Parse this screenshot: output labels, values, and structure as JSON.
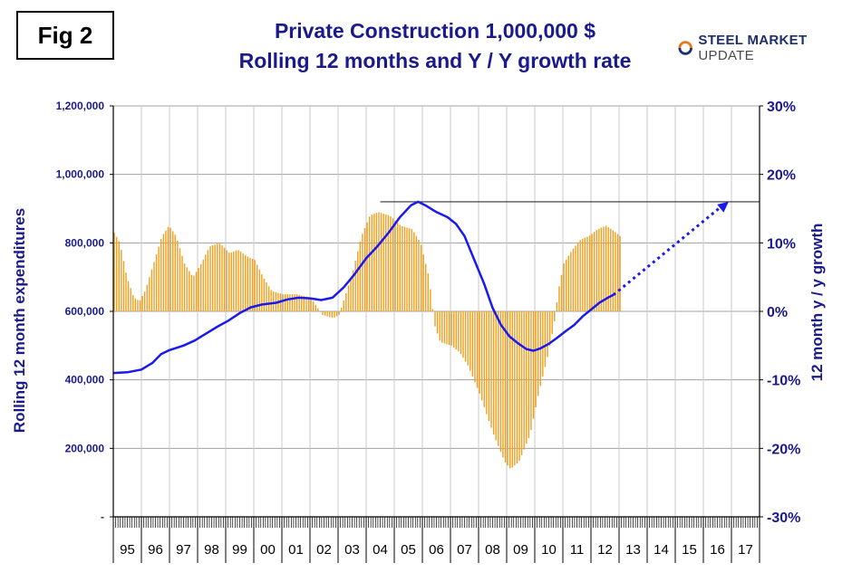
{
  "figure_label": "Fig 2",
  "brand": {
    "bold": "STEEL MARKET",
    "light": " UPDATE",
    "accent": "#e87722"
  },
  "colors": {
    "bars": "#f0a020",
    "line": "#1a1aee",
    "text": "#1a1a8c",
    "dotted_arrow": "#1a1aee"
  },
  "chart_data": {
    "type": "bar",
    "title": [
      "Private Construction 1,000,000 $",
      "Rolling 12 months and Y / Y growth rate"
    ],
    "ylabel_left": "Rolling 12 month expenditures",
    "ylabel_right": "12 month y / y growth",
    "left_axis": {
      "min": 0,
      "max": 1200000,
      "ticks": [
        "-",
        "200,000",
        "400,000",
        "600,000",
        "800,000",
        "1,000,000",
        "1,200,000"
      ]
    },
    "right_axis": {
      "min": -0.3,
      "max": 0.3,
      "ticks": [
        "-30%",
        "-20%",
        "-10%",
        "0%",
        "10%",
        "20%",
        "30%"
      ]
    },
    "years": [
      "95",
      "96",
      "97",
      "98",
      "99",
      "00",
      "01",
      "02",
      "03",
      "04",
      "05",
      "06",
      "07",
      "08",
      "09",
      "10",
      "11",
      "12",
      "13",
      "14",
      "15",
      "16",
      "17"
    ],
    "series": [
      {
        "name": "Y/Y growth (bars, right axis)",
        "type": "bar",
        "anchors": [
          [
            1995.0,
            0.115
          ],
          [
            1995.2,
            0.1
          ],
          [
            1995.45,
            0.05
          ],
          [
            1995.7,
            0.02
          ],
          [
            1995.9,
            0.015
          ],
          [
            1996.1,
            0.03
          ],
          [
            1996.4,
            0.07
          ],
          [
            1996.7,
            0.11
          ],
          [
            1996.95,
            0.125
          ],
          [
            1997.2,
            0.11
          ],
          [
            1997.5,
            0.07
          ],
          [
            1997.8,
            0.05
          ],
          [
            1998.1,
            0.07
          ],
          [
            1998.4,
            0.095
          ],
          [
            1998.75,
            0.1
          ],
          [
            1999.1,
            0.085
          ],
          [
            1999.4,
            0.09
          ],
          [
            1999.75,
            0.08
          ],
          [
            2000.0,
            0.075
          ],
          [
            2000.3,
            0.05
          ],
          [
            2000.6,
            0.03
          ],
          [
            2001.0,
            0.025
          ],
          [
            2001.5,
            0.025
          ],
          [
            2002.0,
            0.02
          ],
          [
            2002.4,
            -0.005
          ],
          [
            2002.8,
            -0.01
          ],
          [
            2003.0,
            -0.005
          ],
          [
            2003.2,
            0.02
          ],
          [
            2003.5,
            0.06
          ],
          [
            2003.8,
            0.11
          ],
          [
            2004.1,
            0.14
          ],
          [
            2004.4,
            0.145
          ],
          [
            2004.8,
            0.14
          ],
          [
            2005.2,
            0.125
          ],
          [
            2005.6,
            0.12
          ],
          [
            2005.9,
            0.1
          ],
          [
            2006.2,
            0.05
          ],
          [
            2006.4,
            -0.02
          ],
          [
            2006.6,
            -0.045
          ],
          [
            2007.0,
            -0.05
          ],
          [
            2007.3,
            -0.06
          ],
          [
            2007.6,
            -0.08
          ],
          [
            2008.0,
            -0.12
          ],
          [
            2008.5,
            -0.18
          ],
          [
            2008.9,
            -0.22
          ],
          [
            2009.1,
            -0.23
          ],
          [
            2009.4,
            -0.22
          ],
          [
            2009.8,
            -0.18
          ],
          [
            2010.1,
            -0.12
          ],
          [
            2010.4,
            -0.07
          ],
          [
            2010.65,
            -0.02
          ],
          [
            2010.8,
            0.03
          ],
          [
            2011.0,
            0.07
          ],
          [
            2011.3,
            0.09
          ],
          [
            2011.6,
            0.105
          ],
          [
            2011.9,
            0.11
          ],
          [
            2012.2,
            0.12
          ],
          [
            2012.5,
            0.125
          ],
          [
            2012.7,
            0.12
          ],
          [
            2012.85,
            0.115
          ],
          [
            2013.0,
            0.11
          ]
        ]
      },
      {
        "name": "Rolling 12 month expenditures (line, left axis)",
        "type": "line",
        "anchors": [
          [
            1995.0,
            420000
          ],
          [
            1995.5,
            422000
          ],
          [
            1996.0,
            430000
          ],
          [
            1996.4,
            450000
          ],
          [
            1996.7,
            475000
          ],
          [
            1997.0,
            487000
          ],
          [
            1997.5,
            500000
          ],
          [
            1997.9,
            515000
          ],
          [
            1998.3,
            535000
          ],
          [
            1998.7,
            555000
          ],
          [
            1999.1,
            573000
          ],
          [
            1999.5,
            595000
          ],
          [
            1999.9,
            612000
          ],
          [
            2000.3,
            620000
          ],
          [
            2000.8,
            625000
          ],
          [
            2001.2,
            635000
          ],
          [
            2001.6,
            640000
          ],
          [
            2002.0,
            638000
          ],
          [
            2002.4,
            633000
          ],
          [
            2002.8,
            640000
          ],
          [
            2003.2,
            670000
          ],
          [
            2003.6,
            710000
          ],
          [
            2004.0,
            755000
          ],
          [
            2004.4,
            790000
          ],
          [
            2004.8,
            830000
          ],
          [
            2005.2,
            875000
          ],
          [
            2005.6,
            910000
          ],
          [
            2005.85,
            920000
          ],
          [
            2006.1,
            910000
          ],
          [
            2006.5,
            890000
          ],
          [
            2006.9,
            875000
          ],
          [
            2007.2,
            855000
          ],
          [
            2007.5,
            820000
          ],
          [
            2007.8,
            760000
          ],
          [
            2008.2,
            680000
          ],
          [
            2008.5,
            610000
          ],
          [
            2008.8,
            560000
          ],
          [
            2009.1,
            527000
          ],
          [
            2009.4,
            507000
          ],
          [
            2009.7,
            490000
          ],
          [
            2009.95,
            485000
          ],
          [
            2010.2,
            492000
          ],
          [
            2010.5,
            505000
          ],
          [
            2010.8,
            523000
          ],
          [
            2011.1,
            542000
          ],
          [
            2011.4,
            560000
          ],
          [
            2011.7,
            585000
          ],
          [
            2012.0,
            605000
          ],
          [
            2012.3,
            625000
          ],
          [
            2012.6,
            640000
          ],
          [
            2012.8,
            648000
          ]
        ]
      }
    ],
    "projection": {
      "from": [
        2012.8,
        648000
      ],
      "to": [
        2016.9,
        920000
      ]
    },
    "peak_line": {
      "value": 920000,
      "from": 2004.5
    }
  }
}
